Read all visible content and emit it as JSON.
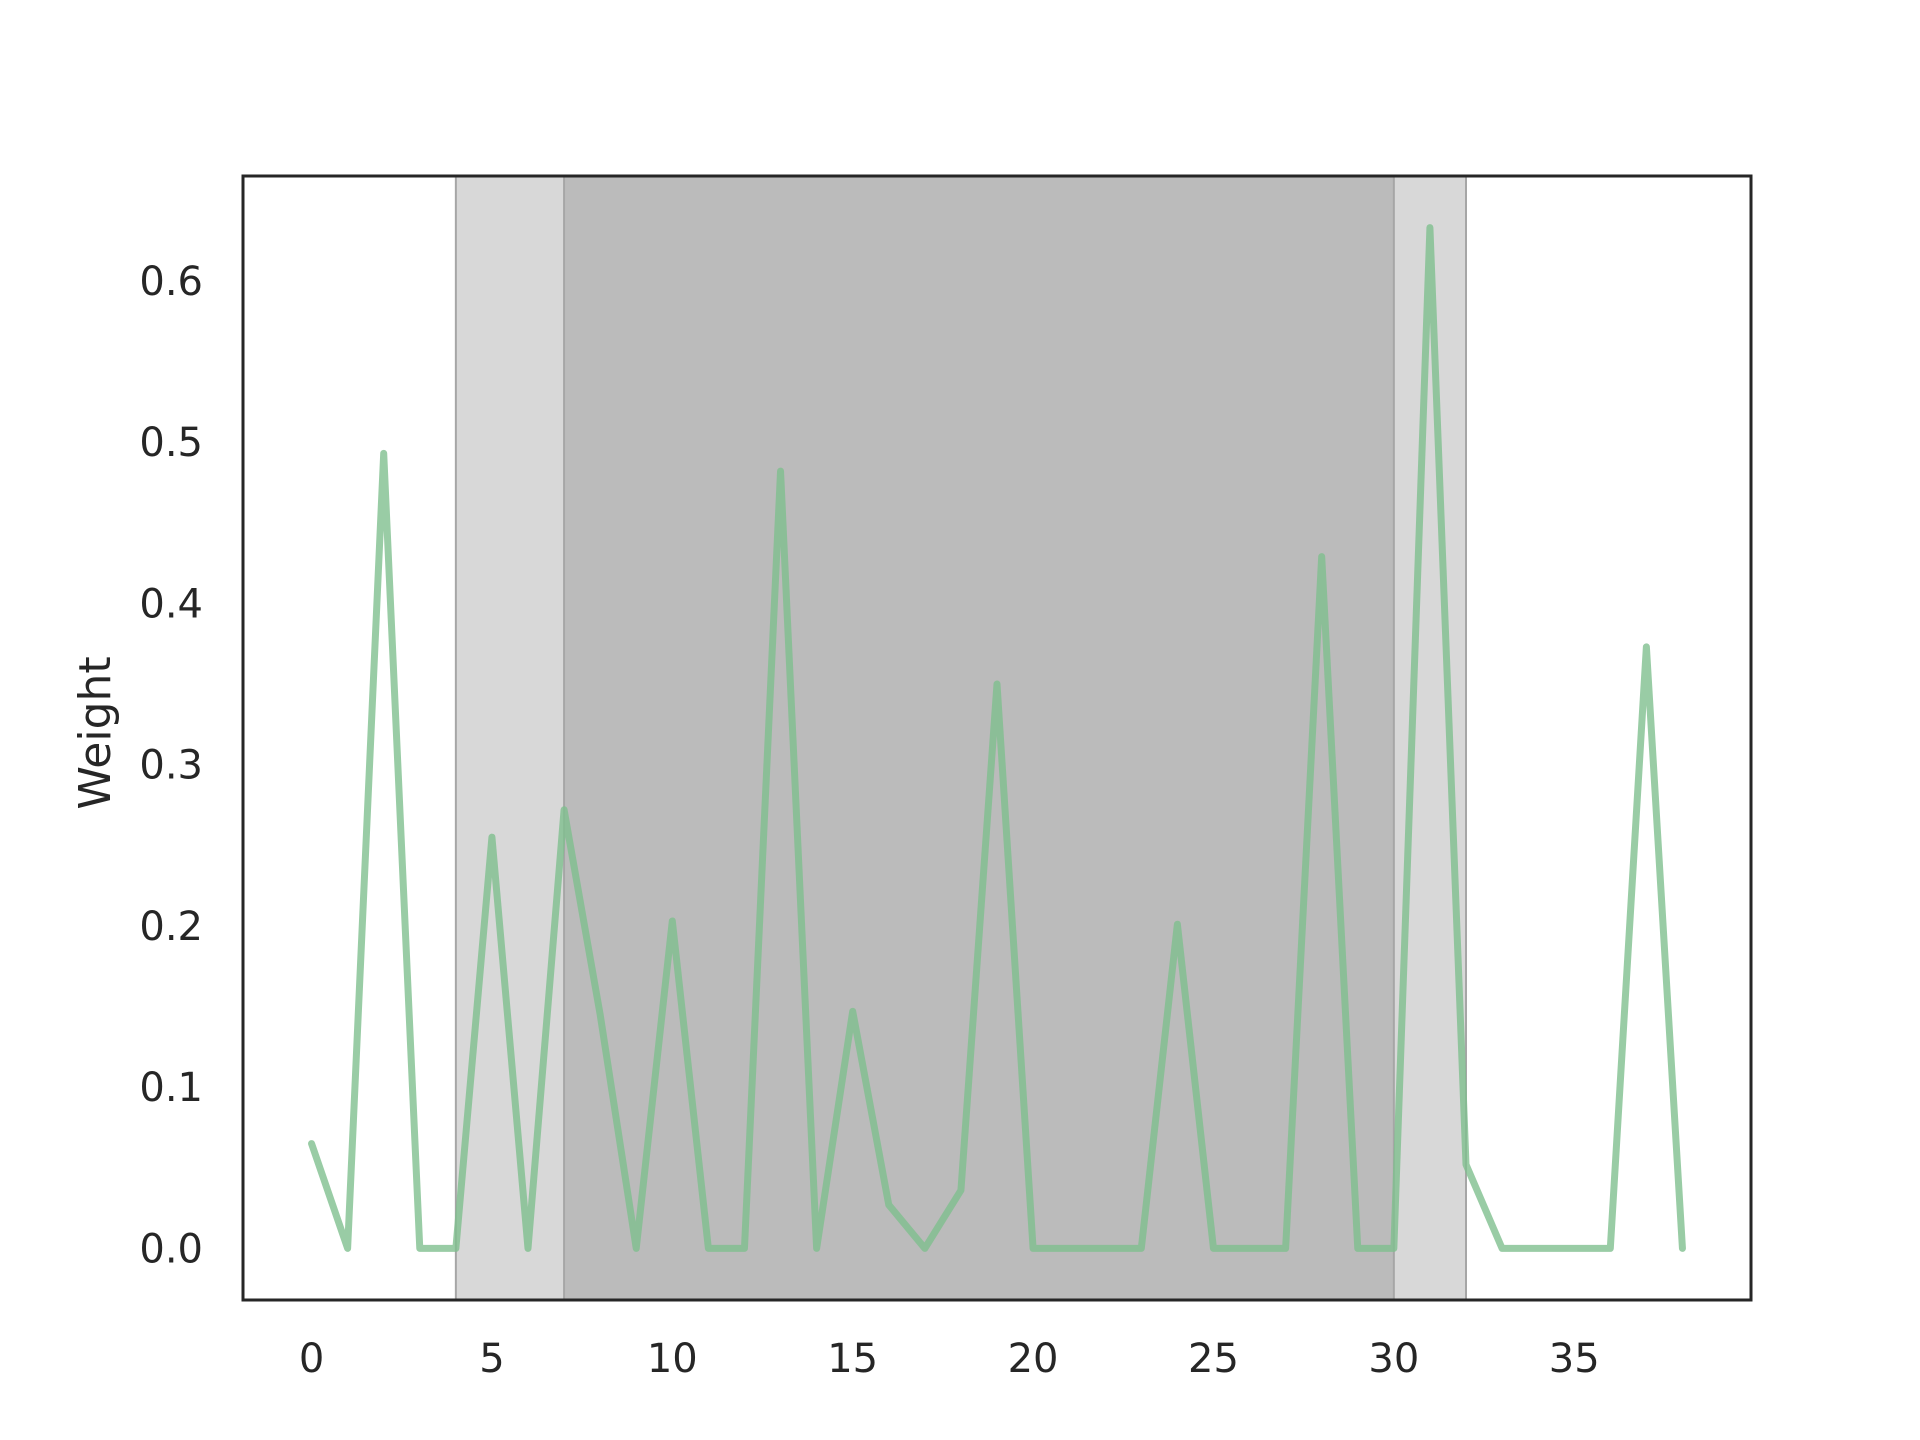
{
  "chart_data": {
    "type": "line",
    "title": "",
    "xlabel": "",
    "ylabel": "Weight",
    "xlim": [
      -1.9,
      39.9
    ],
    "ylim": [
      -0.032,
      0.665
    ],
    "xticks": [
      0,
      5,
      10,
      15,
      20,
      25,
      30,
      35
    ],
    "xtick_labels": [
      "0",
      "5",
      "10",
      "15",
      "20",
      "25",
      "30",
      "35"
    ],
    "yticks": [
      0.0,
      0.1,
      0.2,
      0.3,
      0.4,
      0.5,
      0.6
    ],
    "ytick_labels": [
      "0.0",
      "0.1",
      "0.2",
      "0.3",
      "0.4",
      "0.5",
      "0.6"
    ],
    "grid": false,
    "shaded_regions": [
      {
        "x_start": 4,
        "x_end": 32,
        "color": "#d8d8d8"
      },
      {
        "x_start": 7,
        "x_end": 30,
        "color": "#bbbbbb"
      }
    ],
    "series": [
      {
        "color": "#7fbf8e",
        "x": [
          0,
          1,
          2,
          3,
          4,
          5,
          6,
          7,
          8,
          9,
          10,
          11,
          12,
          13,
          14,
          15,
          16,
          17,
          18,
          19,
          20,
          21,
          22,
          23,
          24,
          25,
          26,
          27,
          28,
          29,
          30,
          31,
          32,
          33,
          34,
          35,
          36,
          37,
          38
        ],
        "values": [
          0.065,
          0.0,
          0.493,
          0.0,
          0.0,
          0.255,
          0.0,
          0.272,
          0.145,
          0.0,
          0.203,
          0.0,
          0.0,
          0.482,
          0.0,
          0.147,
          0.027,
          0.0,
          0.036,
          0.35,
          0.0,
          0.0,
          0.0,
          0.0,
          0.201,
          0.0,
          0.0,
          0.0,
          0.429,
          0.0,
          0.0,
          0.633,
          0.052,
          0.0,
          0.0,
          0.0,
          0.0,
          0.373,
          0.0
        ]
      }
    ]
  }
}
